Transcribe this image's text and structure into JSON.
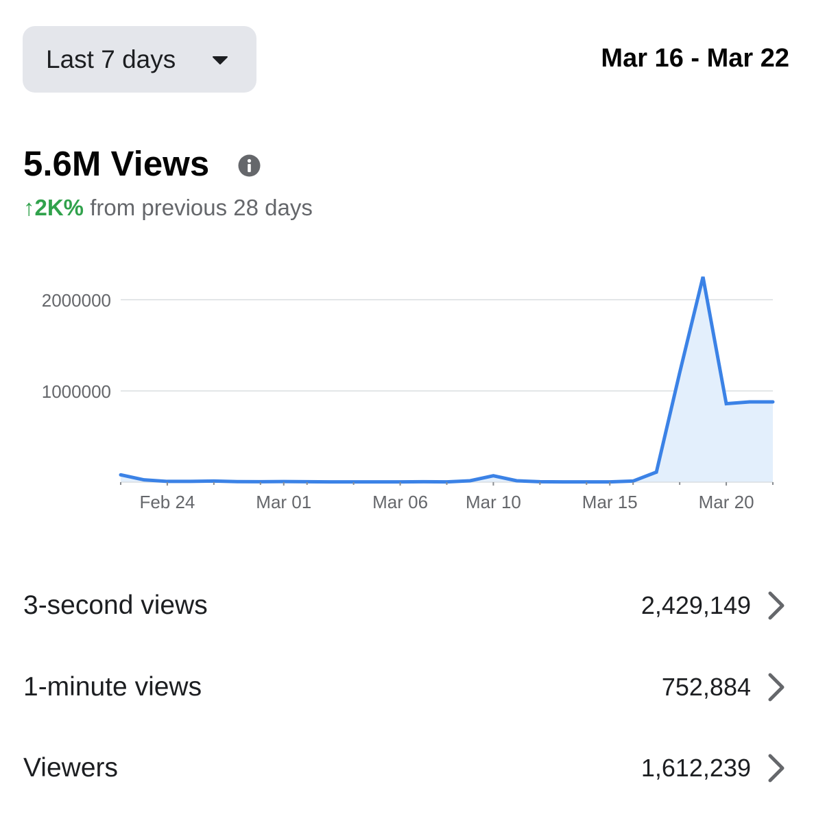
{
  "header": {
    "range_label": "Last 7 days",
    "date_range": "Mar 16 - Mar 22"
  },
  "summary": {
    "title": "5.6M Views",
    "change_value": "↑2K%",
    "change_text": " from previous 28 days"
  },
  "colors": {
    "accent": "#3b82e6",
    "area": "#e3effc",
    "positive": "#31a24c",
    "muted": "#65676b"
  },
  "icons": {
    "range": "caret-down-icon",
    "info": "info-icon",
    "row": "chevron-right-icon"
  },
  "chart_data": {
    "type": "area",
    "x": [
      "Feb 22",
      "Feb 23",
      "Feb 24",
      "Feb 25",
      "Feb 26",
      "Feb 27",
      "Feb 28",
      "Mar 01",
      "Mar 02",
      "Mar 03",
      "Mar 04",
      "Mar 05",
      "Mar 06",
      "Mar 07",
      "Mar 08",
      "Mar 09",
      "Mar 10",
      "Mar 11",
      "Mar 12",
      "Mar 13",
      "Mar 14",
      "Mar 15",
      "Mar 16",
      "Mar 17",
      "Mar 18",
      "Mar 19",
      "Mar 20",
      "Mar 21",
      "Mar 22"
    ],
    "series": [
      {
        "values": [
          80000,
          25000,
          8000,
          8000,
          12000,
          6000,
          5000,
          7000,
          5000,
          3000,
          3000,
          3000,
          3000,
          5000,
          3000,
          15000,
          70000,
          15000,
          5000,
          3000,
          3000,
          3000,
          12000,
          110000,
          1200000,
          2250000,
          860000,
          880000,
          880000
        ]
      }
    ],
    "x_ticks": [
      "Feb 24",
      "Mar 01",
      "Mar 06",
      "Mar 10",
      "Mar 15",
      "Mar 20"
    ],
    "y_ticks": [
      "2000000",
      "1000000"
    ],
    "ylim": [
      0,
      2300000
    ],
    "grid": true
  },
  "metrics": [
    {
      "label": "3-second views",
      "value": "2,429,149"
    },
    {
      "label": "1-minute views",
      "value": "752,884"
    },
    {
      "label": "Viewers",
      "value": "1,612,239"
    }
  ]
}
